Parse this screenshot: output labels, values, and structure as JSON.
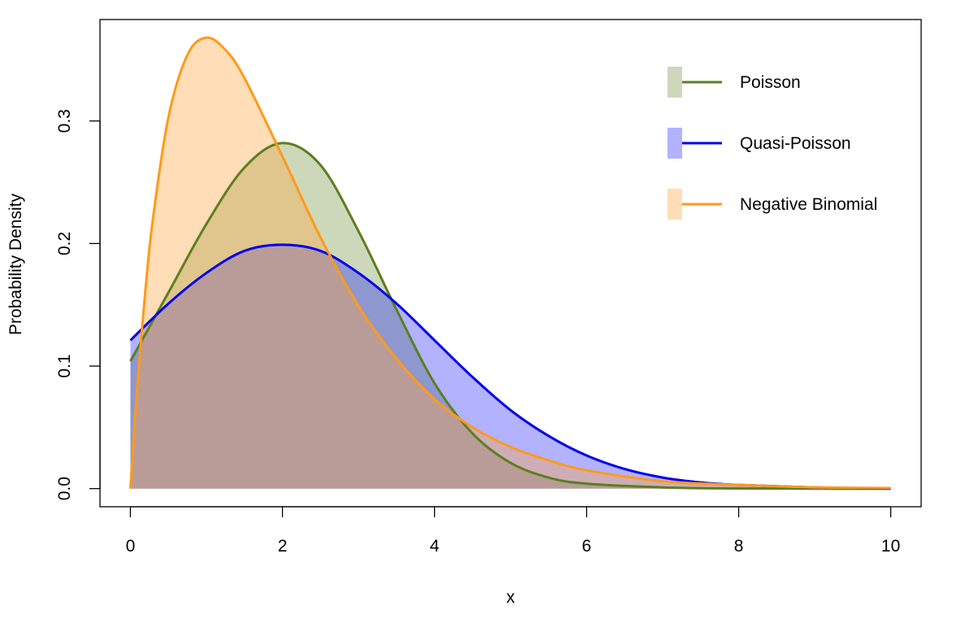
{
  "chart_data": {
    "type": "area",
    "title": "",
    "xlabel": "x",
    "ylabel": "Probability Density",
    "xlim": [
      -0.4,
      10.4
    ],
    "ylim": [
      -0.0148,
      0.3828
    ],
    "x_ticks": [
      "0",
      "2",
      "4",
      "6",
      "8",
      "10"
    ],
    "y_ticks": [
      "0.0",
      "0.1",
      "0.2",
      "0.3"
    ],
    "grid": false,
    "legend_position": "top-right",
    "series": [
      {
        "name": "Poisson",
        "line_color": "#5b7f1f",
        "fill_color": "#5b7f1f",
        "fill_opacity": 0.3,
        "x": [
          0,
          0.5,
          1,
          1.5,
          2,
          2.5,
          3,
          3.5,
          4,
          4.5,
          5,
          5.5,
          6,
          7,
          8,
          9,
          10
        ],
        "y": [
          0.104,
          0.16,
          0.216,
          0.262,
          0.282,
          0.264,
          0.21,
          0.146,
          0.086,
          0.045,
          0.021,
          0.009,
          0.004,
          0.001,
          0.0001,
          0.0,
          0.0
        ]
      },
      {
        "name": "Quasi-Poisson",
        "line_color": "#0000ee",
        "fill_color": "#0000ff",
        "fill_opacity": 0.3,
        "x": [
          0,
          0.5,
          1,
          1.5,
          2,
          2.5,
          3,
          3.5,
          4,
          4.5,
          5,
          5.5,
          6,
          6.5,
          7,
          7.5,
          8,
          9,
          10
        ],
        "y": [
          0.121,
          0.151,
          0.176,
          0.194,
          0.199,
          0.194,
          0.176,
          0.151,
          0.121,
          0.091,
          0.064,
          0.043,
          0.027,
          0.016,
          0.009,
          0.005,
          0.003,
          0.001,
          0.0
        ]
      },
      {
        "name": "Negative Binomial",
        "line_color": "#ff9a1a",
        "fill_color": "#ffa640",
        "fill_opacity": 0.38,
        "x": [
          0,
          0.05,
          0.1,
          0.2,
          0.3,
          0.5,
          0.75,
          1,
          1.25,
          1.5,
          2,
          2.5,
          3,
          3.5,
          4,
          4.5,
          5,
          5.5,
          6,
          7,
          8,
          9,
          10
        ],
        "y": [
          0.0,
          0.048,
          0.09,
          0.164,
          0.222,
          0.303,
          0.354,
          0.368,
          0.358,
          0.335,
          0.271,
          0.205,
          0.149,
          0.106,
          0.073,
          0.05,
          0.034,
          0.023,
          0.015,
          0.006,
          0.003,
          0.001,
          0.0005
        ]
      }
    ]
  }
}
